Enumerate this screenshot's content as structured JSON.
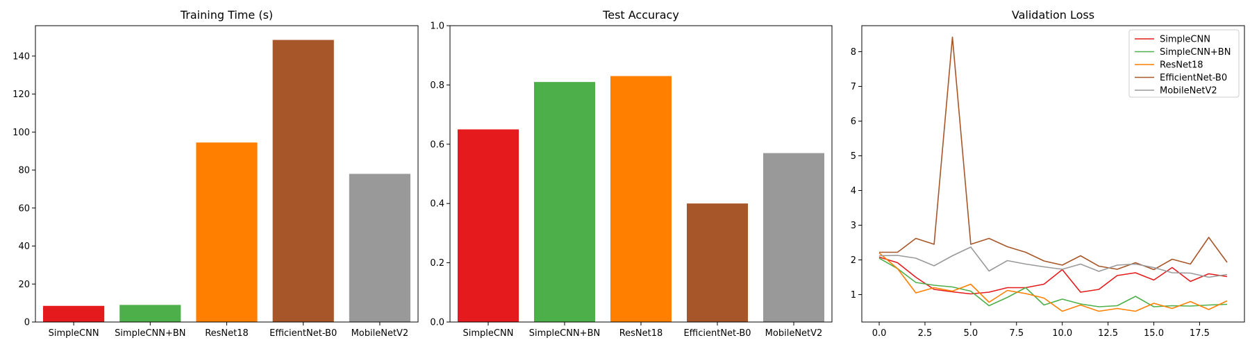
{
  "chart_data": [
    {
      "type": "bar",
      "title": "Training Time (s)",
      "xlabel": "",
      "ylabel": "",
      "categories": [
        "SimpleCNN",
        "SimpleCNN+BN",
        "ResNet18",
        "EfficientNet-B0",
        "MobileNetV2"
      ],
      "values": [
        8.5,
        9.0,
        94.5,
        148.5,
        78.0
      ],
      "colors": [
        "#e41a1c",
        "#4daf4a",
        "#ff7f00",
        "#a65628",
        "#999999"
      ],
      "ylim": [
        0,
        156
      ],
      "yticks": [
        0,
        20,
        40,
        60,
        80,
        100,
        120,
        140
      ],
      "ytick_labels": [
        "0",
        "20",
        "40",
        "60",
        "80",
        "100",
        "120",
        "140"
      ]
    },
    {
      "type": "bar",
      "title": "Test Accuracy",
      "xlabel": "",
      "ylabel": "",
      "categories": [
        "SimpleCNN",
        "SimpleCNN+BN",
        "ResNet18",
        "EfficientNet-B0",
        "MobileNetV2"
      ],
      "values": [
        0.65,
        0.81,
        0.83,
        0.4,
        0.57
      ],
      "colors": [
        "#e41a1c",
        "#4daf4a",
        "#ff7f00",
        "#a65628",
        "#999999"
      ],
      "ylim": [
        0,
        1.0
      ],
      "yticks": [
        0,
        0.2,
        0.4,
        0.6,
        0.8,
        1.0
      ],
      "ytick_labels": [
        "0.0",
        "0.2",
        "0.4",
        "0.6",
        "0.8",
        "1.0"
      ]
    },
    {
      "type": "line",
      "title": "Validation Loss",
      "xlabel": "",
      "ylabel": "",
      "x": [
        0,
        1,
        2,
        3,
        4,
        5,
        6,
        7,
        8,
        9,
        10,
        11,
        12,
        13,
        14,
        15,
        16,
        17,
        18,
        19
      ],
      "xlim": [
        -0.95,
        19.95
      ],
      "ylim": [
        0.21,
        8.75
      ],
      "xticks": [
        0,
        2.5,
        5,
        7.5,
        10,
        12.5,
        15,
        17.5
      ],
      "xtick_labels": [
        "0.0",
        "2.5",
        "5.0",
        "7.5",
        "10.0",
        "12.5",
        "15.0",
        "17.5"
      ],
      "yticks": [
        1,
        2,
        3,
        4,
        5,
        6,
        7,
        8
      ],
      "ytick_labels": [
        "1",
        "2",
        "3",
        "4",
        "5",
        "6",
        "7",
        "8"
      ],
      "legend_position": "top-right",
      "series": [
        {
          "name": "SimpleCNN",
          "color": "#e41a1c",
          "values": [
            2.08,
            1.92,
            1.5,
            1.15,
            1.08,
            1.02,
            1.07,
            1.2,
            1.2,
            1.3,
            1.72,
            1.07,
            1.15,
            1.55,
            1.63,
            1.42,
            1.78,
            1.38,
            1.6,
            1.52
          ]
        },
        {
          "name": "SimpleCNN+BN",
          "color": "#4daf4a",
          "values": [
            2.05,
            1.75,
            1.35,
            1.27,
            1.22,
            1.1,
            0.68,
            0.92,
            1.2,
            0.7,
            0.87,
            0.73,
            0.65,
            0.68,
            0.95,
            0.65,
            0.68,
            0.67,
            0.7,
            0.72
          ]
        },
        {
          "name": "ResNet18",
          "color": "#ff7f00",
          "values": [
            2.2,
            1.75,
            1.05,
            1.2,
            1.1,
            1.3,
            0.78,
            1.12,
            1.03,
            0.9,
            0.52,
            0.7,
            0.52,
            0.6,
            0.52,
            0.75,
            0.6,
            0.8,
            0.57,
            0.82
          ]
        },
        {
          "name": "EfficientNet-B0",
          "color": "#a65628",
          "values": [
            2.22,
            2.22,
            2.62,
            2.45,
            8.42,
            2.45,
            2.62,
            2.38,
            2.22,
            1.97,
            1.85,
            2.12,
            1.82,
            1.73,
            1.92,
            1.72,
            2.02,
            1.88,
            2.65,
            1.93
          ]
        },
        {
          "name": "MobileNetV2",
          "color": "#999999",
          "values": [
            2.12,
            2.13,
            2.05,
            1.83,
            2.12,
            2.37,
            1.68,
            1.98,
            1.88,
            1.8,
            1.73,
            1.88,
            1.67,
            1.85,
            1.88,
            1.78,
            1.63,
            1.62,
            1.5,
            1.58
          ]
        }
      ]
    }
  ]
}
